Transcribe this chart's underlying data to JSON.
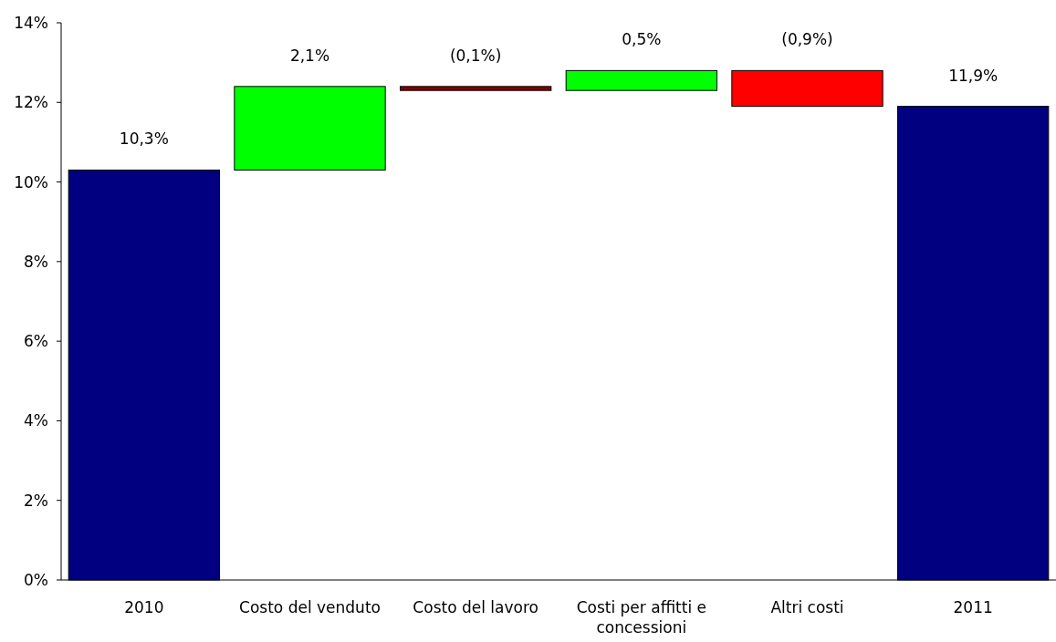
{
  "chart_data": {
    "type": "bar",
    "categories": [
      "2010",
      "Costo del venduto",
      "Costo del lavoro",
      "Costi per affitti e concessioni",
      "Altri costi",
      "2011"
    ],
    "values": [
      10.3,
      2.1,
      -0.1,
      0.5,
      -0.9,
      11.9
    ],
    "base": [
      0,
      10.3,
      12.4,
      12.3,
      12.8,
      0
    ],
    "colors": [
      "#000080",
      "#00ff00",
      "#800000",
      "#00ff00",
      "#ff0000",
      "#000080"
    ],
    "value_labels": [
      "10,3%",
      "2,1%",
      "(0,1%)",
      "0,5%",
      "(0,9%)",
      "11,9%"
    ],
    "ylim": [
      0,
      14
    ],
    "yticks": [
      {
        "value": 0,
        "label": "0%"
      },
      {
        "value": 2,
        "label": "2%"
      },
      {
        "value": 4,
        "label": "4%"
      },
      {
        "value": 6,
        "label": "6%"
      },
      {
        "value": 8,
        "label": "8%"
      },
      {
        "value": 10,
        "label": "10%"
      },
      {
        "value": 12,
        "label": "12%"
      },
      {
        "value": 14,
        "label": "14%"
      }
    ]
  }
}
